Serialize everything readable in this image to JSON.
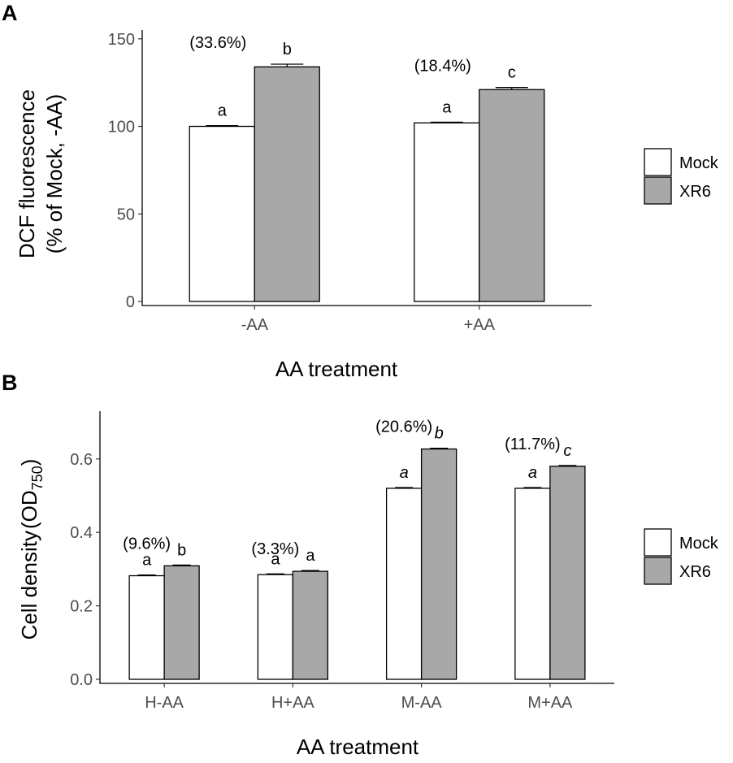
{
  "chart_data": [
    {
      "panel": "A",
      "type": "bar",
      "xlabel": "AA treatment",
      "ylabel_line1": "DCF fluorescence",
      "ylabel_line2": "(% of Mock, -AA)",
      "ylim": [
        0,
        155
      ],
      "yticks": [
        0,
        50,
        100,
        150
      ],
      "categories": [
        "-AA",
        "+AA"
      ],
      "series": [
        {
          "name": "Mock",
          "color": "#ffffff",
          "values": [
            100,
            102
          ],
          "errors": [
            0.4,
            0.4
          ],
          "letters": [
            "a",
            "a"
          ]
        },
        {
          "name": "XR6",
          "color": "#a8a8a8",
          "values": [
            134,
            121
          ],
          "errors": [
            1.5,
            1.2
          ],
          "letters": [
            "b",
            "c"
          ]
        }
      ],
      "group_annotations": [
        "(33.6%)",
        "(18.4%)"
      ],
      "letters_italic": false,
      "legend": [
        "Mock",
        "XR6"
      ]
    },
    {
      "panel": "B",
      "type": "bar",
      "xlabel": "AA treatment",
      "ylabel_main": "Cell density",
      "ylabel_od": "OD",
      "ylabel_sub": "750",
      "ylim": [
        0,
        0.73
      ],
      "yticks": [
        "0.0",
        "0.2",
        "0.4",
        "0.6"
      ],
      "categories": [
        "H-AA",
        "H+AA",
        "M-AA",
        "M+AA"
      ],
      "series": [
        {
          "name": "Mock",
          "color": "#ffffff",
          "values": [
            0.282,
            0.285,
            0.52,
            0.52
          ],
          "errors": [
            0.002,
            0.002,
            0.002,
            0.002
          ],
          "letters": [
            "a",
            "a",
            "a",
            "a"
          ]
        },
        {
          "name": "XR6",
          "color": "#a8a8a8",
          "values": [
            0.309,
            0.294,
            0.627,
            0.58
          ],
          "errors": [
            0.002,
            0.002,
            0.002,
            0.002
          ],
          "letters": [
            "b",
            "a",
            "b",
            "c"
          ]
        }
      ],
      "group_annotations": [
        "(9.6%)",
        "(3.3%)",
        "(20.6%)",
        "(11.7%)"
      ],
      "letters_italic_groups": [
        false,
        false,
        true,
        true
      ],
      "legend": [
        "Mock",
        "XR6"
      ]
    }
  ]
}
